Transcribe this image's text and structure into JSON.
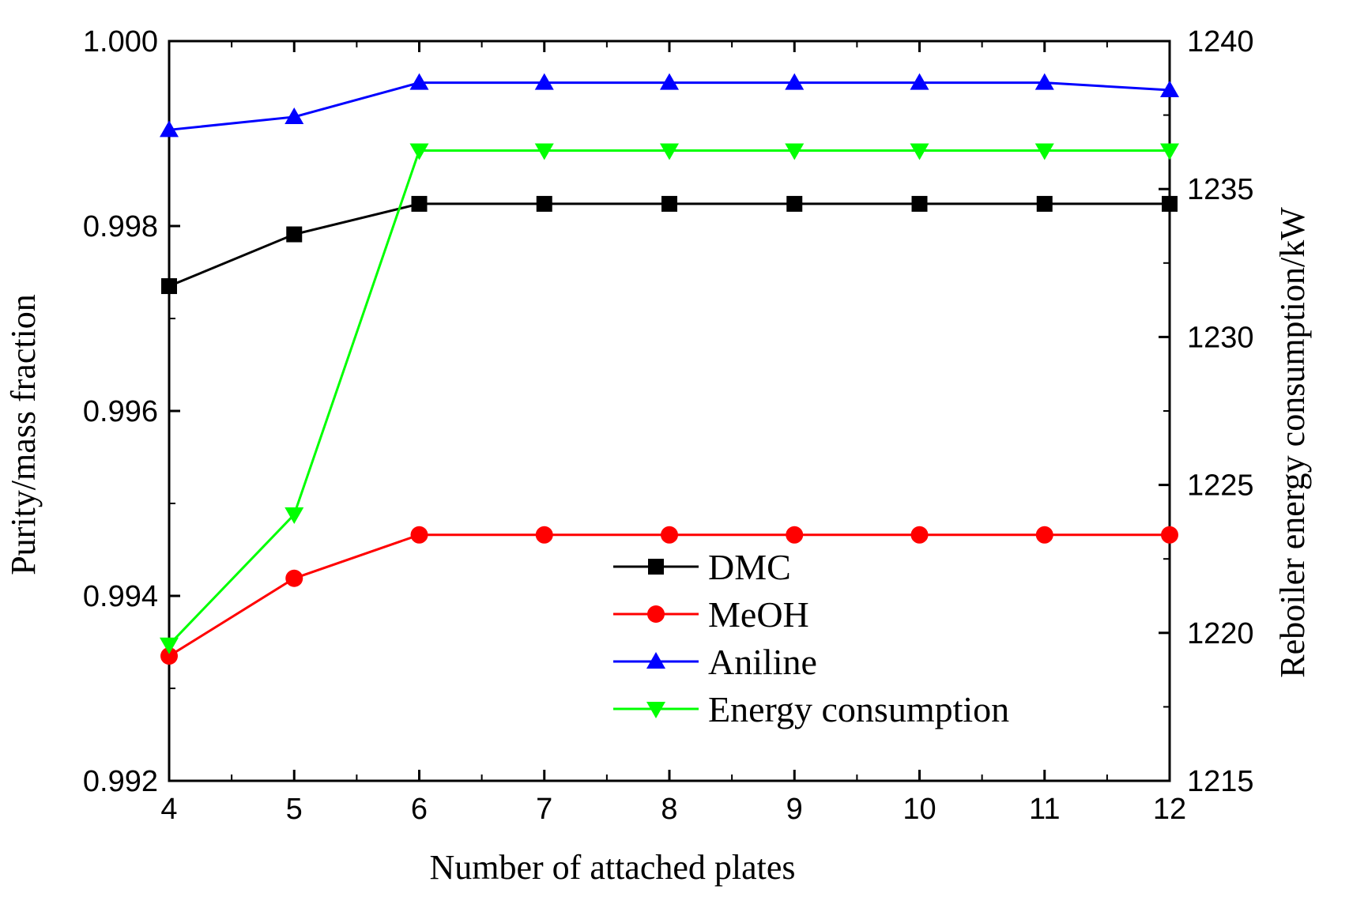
{
  "chart_data": {
    "type": "line",
    "xlabel": "Number of attached plates",
    "ylabel_left": "Purity/mass fraction",
    "ylabel_right": "Reboiler energy consumption/kW",
    "x": [
      4,
      5,
      6,
      7,
      8,
      9,
      10,
      11,
      12
    ],
    "xlim": [
      4,
      12
    ],
    "xticks": [
      4,
      5,
      6,
      7,
      8,
      9,
      10,
      11,
      12
    ],
    "xtick_labels": [
      "4",
      "5",
      "6",
      "7",
      "8",
      "9",
      "10",
      "11",
      "12"
    ],
    "ylim_left": [
      0.992,
      1.0
    ],
    "yticks_left": [
      0.992,
      0.994,
      0.996,
      0.998,
      1.0
    ],
    "ytick_labels_left": [
      "0.992",
      "0.994",
      "0.996",
      "0.998",
      "1.000"
    ],
    "ylim_right": [
      1215,
      1240
    ],
    "yticks_right": [
      1215,
      1220,
      1225,
      1230,
      1235,
      1240
    ],
    "ytick_labels_right": [
      "1215",
      "1220",
      "1225",
      "1230",
      "1235",
      "1240"
    ],
    "grid": false,
    "legend_position": "center-right",
    "series": [
      {
        "name": "DMC",
        "axis": "left",
        "color": "#000000",
        "marker": "square",
        "values": [
          0.99735,
          0.99791,
          0.99824,
          0.99824,
          0.99824,
          0.99824,
          0.99824,
          0.99824,
          0.99824
        ]
      },
      {
        "name": "MeOH",
        "axis": "left",
        "color": "#ff0000",
        "marker": "circle",
        "values": [
          0.99335,
          0.99419,
          0.99466,
          0.99466,
          0.99466,
          0.99466,
          0.99466,
          0.99466,
          0.99466
        ]
      },
      {
        "name": "Aniline",
        "axis": "left",
        "color": "#0000ff",
        "marker": "triangle-up",
        "values": [
          0.99904,
          0.99918,
          0.99955,
          0.99955,
          0.99955,
          0.99955,
          0.99955,
          0.99955,
          0.99947
        ]
      },
      {
        "name": "Energy consumption",
        "axis": "right",
        "color": "#00ff00",
        "marker": "triangle-down",
        "values": [
          1219.6,
          1224.0,
          1236.3,
          1236.3,
          1236.3,
          1236.3,
          1236.3,
          1236.3,
          1236.3
        ]
      }
    ]
  }
}
